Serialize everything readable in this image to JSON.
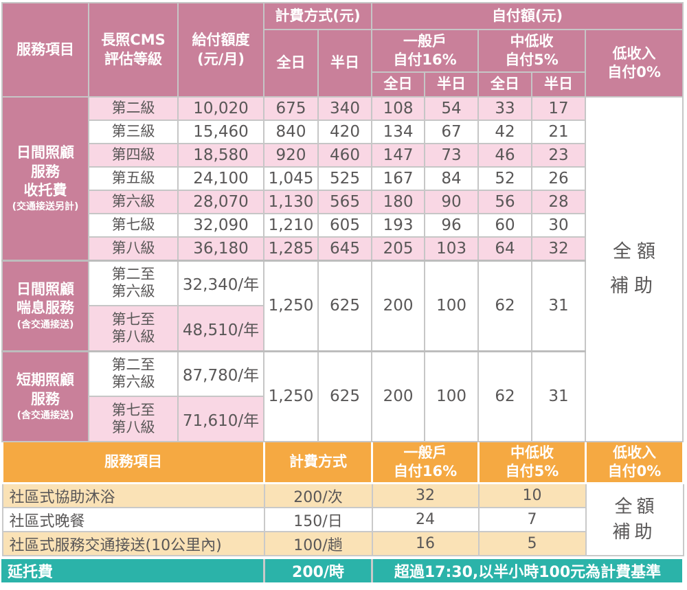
{
  "colors": {
    "rose_header": "#c9809a",
    "light_pink_row": "#f9d7e4",
    "orange_header": "#f5a942",
    "beige_row": "#fae2b6",
    "teal_bar": "#2bb3a9",
    "text_grey": "#595757",
    "border_grey": "#c6c6c6"
  },
  "header": {
    "service_item": "服務項目",
    "cms_level": "長照CMS\n評估等級",
    "payment_quota": "給付額度\n(元/月)",
    "billing_method": "計費方式(元)",
    "copay_amount": "自付額(元)",
    "full_day": "全日",
    "half_day": "半日",
    "general_household": "一般戶\n自付16%",
    "mid_low_income": "中低收\n自付5%",
    "low_income": "低收入\n自付0%"
  },
  "full_subsidy": "全額\n補助",
  "sections": [
    {
      "label": "日間照顧\n服務\n收托費",
      "note": "(交通接送另計)",
      "rows": [
        {
          "level": "第二級",
          "quota": "10,020",
          "values": [
            "675",
            "340",
            "108",
            "54",
            "33",
            "17"
          ],
          "shaded": true
        },
        {
          "level": "第三級",
          "quota": "15,460",
          "values": [
            "840",
            "420",
            "134",
            "67",
            "42",
            "21"
          ],
          "shaded": false
        },
        {
          "level": "第四級",
          "quota": "18,580",
          "values": [
            "920",
            "460",
            "147",
            "73",
            "46",
            "23"
          ],
          "shaded": true
        },
        {
          "level": "第五級",
          "quota": "24,100",
          "values": [
            "1,045",
            "525",
            "167",
            "84",
            "52",
            "26"
          ],
          "shaded": false
        },
        {
          "level": "第六級",
          "quota": "28,070",
          "values": [
            "1,130",
            "565",
            "180",
            "90",
            "56",
            "28"
          ],
          "shaded": true
        },
        {
          "level": "第七級",
          "quota": "32,090",
          "values": [
            "1,210",
            "605",
            "193",
            "96",
            "60",
            "30"
          ],
          "shaded": false
        },
        {
          "level": "第八級",
          "quota": "36,180",
          "values": [
            "1,285",
            "645",
            "205",
            "103",
            "64",
            "32"
          ],
          "shaded": true
        }
      ]
    },
    {
      "label": "日間照顧\n喘息服務",
      "note": "(含交通接送)",
      "rows": [
        {
          "level": "第二至\n第六級",
          "quota": "32,340/年",
          "shaded": false
        },
        {
          "level": "第七至\n第八級",
          "quota": "48,510/年",
          "shaded": true
        }
      ],
      "merged_values": [
        "1,250",
        "625",
        "200",
        "100",
        "62",
        "31"
      ]
    },
    {
      "label": "短期照顧\n服務",
      "note": "(含交通接送)",
      "rows": [
        {
          "level": "第二至\n第六級",
          "quota": "87,780/年",
          "shaded": false
        },
        {
          "level": "第七至\n第八級",
          "quota": "71,610/年",
          "shaded": true
        }
      ],
      "merged_values": [
        "1,250",
        "625",
        "200",
        "100",
        "62",
        "31"
      ]
    }
  ],
  "bottom": {
    "header": {
      "service_item": "服務項目",
      "billing_method": "計費方式",
      "general_household": "一般戶\n自付16%",
      "mid_low_income": "中低收\n自付5%",
      "low_income": "低收入\n自付0%"
    },
    "rows": [
      {
        "name": "社區式協助沐浴",
        "billing": "200/次",
        "general": "32",
        "mid_low": "10",
        "shaded": true
      },
      {
        "name": "社區式晚餐",
        "billing": "150/日",
        "general": "24",
        "mid_low": "7",
        "shaded": false
      },
      {
        "name": "社區式服務交通接送(10公里內)",
        "billing": "100/趟",
        "general": "16",
        "mid_low": "5",
        "shaded": true
      }
    ],
    "full_subsidy": "全額\n補助",
    "extended": {
      "name": "延托費",
      "billing": "200/時",
      "note": "超過17:30,以半小時100元為計費基準"
    }
  }
}
